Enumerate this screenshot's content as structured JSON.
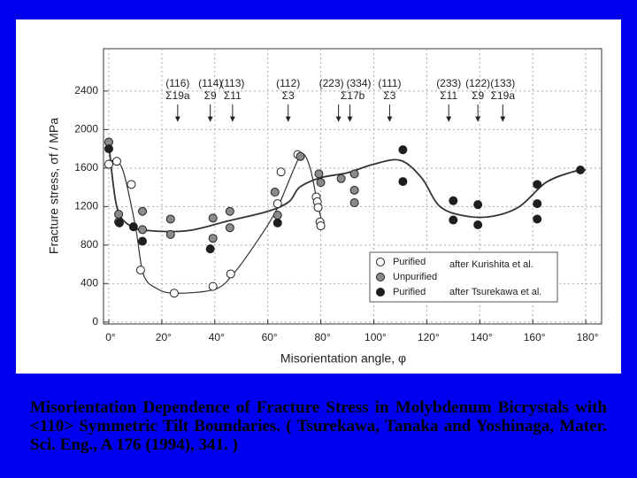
{
  "chart_data": {
    "type": "scatter",
    "xlabel": "Misorientation angle, φ",
    "ylabel": "Fracture stress, σf / MPa",
    "xlim": [
      -2,
      186
    ],
    "ylim": [
      -20,
      2840
    ],
    "xticks": [
      {
        "value": 0,
        "label": "0°"
      },
      {
        "value": 20,
        "label": "20°"
      },
      {
        "value": 40,
        "label": "40°"
      },
      {
        "value": 60,
        "label": "60°"
      },
      {
        "value": 80,
        "label": "80°"
      },
      {
        "value": 100,
        "label": "100°"
      },
      {
        "value": 120,
        "label": "120°"
      },
      {
        "value": 140,
        "label": "140°"
      },
      {
        "value": 160,
        "label": "160°"
      },
      {
        "value": 180,
        "label": "180°"
      }
    ],
    "yticks": [
      0,
      400,
      800,
      1200,
      1600,
      2000,
      2400
    ],
    "grid": true,
    "legend": "lower right",
    "series": [
      {
        "name": "Purified",
        "source": "after Kurishita et al.",
        "color": "#ffffff",
        "x": [
          0,
          3,
          8.5,
          12,
          24.7,
          39.3,
          46,
          63.7,
          65,
          71.3,
          78.3,
          78.7,
          79,
          79.7,
          80
        ],
        "values": [
          1640,
          1670,
          1430,
          540,
          300,
          370,
          500,
          1230,
          1560,
          1740,
          1300,
          1250,
          1190,
          1040,
          1000
        ]
      },
      {
        "name": "Unpurified",
        "color": "#8a8a8a",
        "x": [
          0,
          3.7,
          3.7,
          12.7,
          12.7,
          23.3,
          23.3,
          39.3,
          39.3,
          45.7,
          45.7,
          62.7,
          63.7,
          72.3,
          79.3,
          80,
          87.7,
          92.7,
          92.7,
          92.7
        ],
        "values": [
          1870,
          1120,
          1040,
          1150,
          960,
          1070,
          910,
          1080,
          870,
          1150,
          980,
          1350,
          1110,
          1720,
          1540,
          1450,
          1490,
          1540,
          1370,
          1240
        ]
      },
      {
        "name": "Purified",
        "source": "after Tsurekawa et al.",
        "color": "#1e1e1e",
        "x": [
          0,
          4,
          9.3,
          12.7,
          38.3,
          63.7,
          111,
          111,
          130,
          130,
          139.3,
          139.3,
          161.7,
          161.7,
          161.7,
          178
        ],
        "values": [
          1800,
          1030,
          990,
          840,
          760,
          1030,
          1790,
          1460,
          1260,
          1060,
          1220,
          1010,
          1430,
          1230,
          1070,
          1580
        ]
      }
    ],
    "curves": [
      {
        "x": [
          0,
          5,
          10,
          13,
          18,
          25,
          40,
          47,
          55,
          63,
          70,
          73,
          76,
          79,
          81
        ],
        "values": [
          1680,
          1600,
          1000,
          500,
          350,
          300,
          340,
          500,
          800,
          1150,
          1600,
          1750,
          1600,
          1200,
          1000
        ]
      },
      {
        "x": [
          0,
          3,
          8,
          15,
          30,
          45,
          60,
          68,
          72,
          80,
          90,
          100,
          110,
          118,
          125,
          135,
          145,
          155,
          165,
          175,
          180
        ],
        "values": [
          1850,
          1200,
          1000,
          950,
          950,
          1050,
          1150,
          1250,
          1400,
          1500,
          1550,
          1640,
          1680,
          1500,
          1200,
          1100,
          1100,
          1200,
          1450,
          1560,
          1580
        ]
      }
    ],
    "annotations": [
      {
        "hkl": "(116)",
        "sigma": "Σ19a",
        "x": 26
      },
      {
        "hkl": "(114)",
        "sigma": "Σ9",
        "x": 38.3
      },
      {
        "hkl": "(113)",
        "sigma": "Σ11",
        "x": 46.7
      },
      {
        "hkl": "(112)",
        "sigma": "Σ3",
        "x": 67.7
      },
      {
        "hkl": "(223)",
        "sigma": "Σ17b",
        "x": 86.7
      },
      {
        "hkl": "(334)",
        "x": 91
      },
      {
        "hkl": "(111)",
        "sigma": "Σ3",
        "x": 106
      },
      {
        "hkl": "(233)",
        "sigma": "Σ11",
        "x": 128.3
      },
      {
        "hkl": "(122)",
        "sigma": "Σ9",
        "x": 139.3
      },
      {
        "hkl": "(133)",
        "sigma": "Σ19a",
        "x": 148.7
      }
    ]
  },
  "caption": "Misorientation Dependence of Fracture Stress in Molybdenum Bicrystals with <110> Symmetric Tilt Boundaries. ( Tsurekawa, Tanaka and Yoshinaga, Mater. Sci. Eng., A 176 (1994), 341. )"
}
